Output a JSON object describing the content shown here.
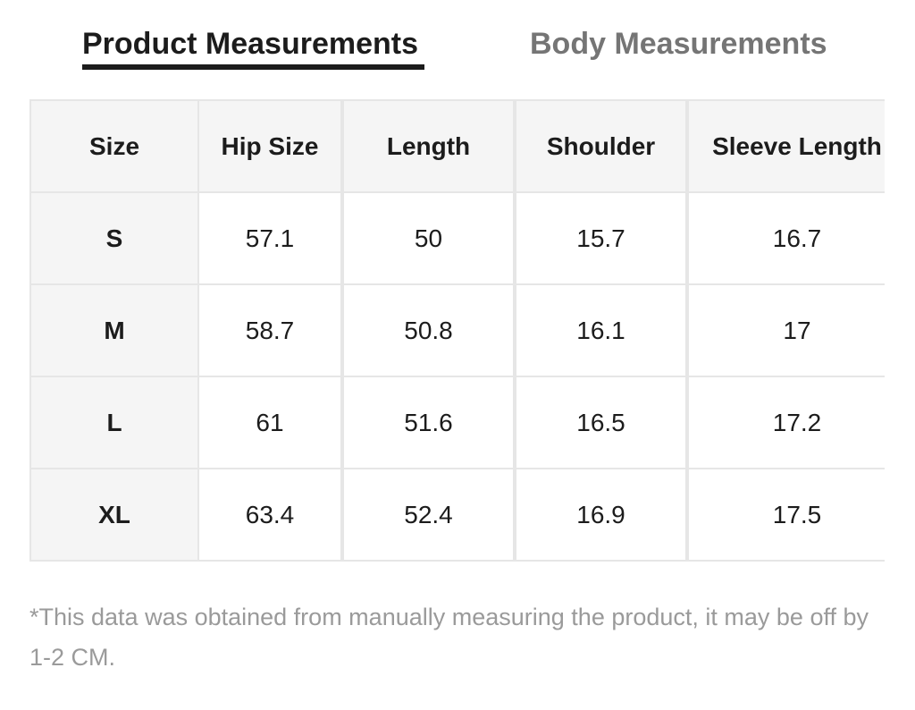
{
  "tabs": {
    "product": "Product Measurements",
    "body": "Body Measurements"
  },
  "table": {
    "headers": [
      "Size",
      "Hip Size",
      "Length",
      "Shoulder",
      "Sleeve Length"
    ],
    "rows": [
      [
        "S",
        "57.1",
        "50",
        "15.7",
        "16.7"
      ],
      [
        "M",
        "58.7",
        "50.8",
        "16.1",
        "17"
      ],
      [
        "L",
        "61",
        "51.6",
        "16.5",
        "17.2"
      ],
      [
        "XL",
        "63.4",
        "52.4",
        "16.9",
        "17.5"
      ]
    ]
  },
  "footnote": "*This data was obtained from manually measuring the product, it may be off by 1-2 CM."
}
